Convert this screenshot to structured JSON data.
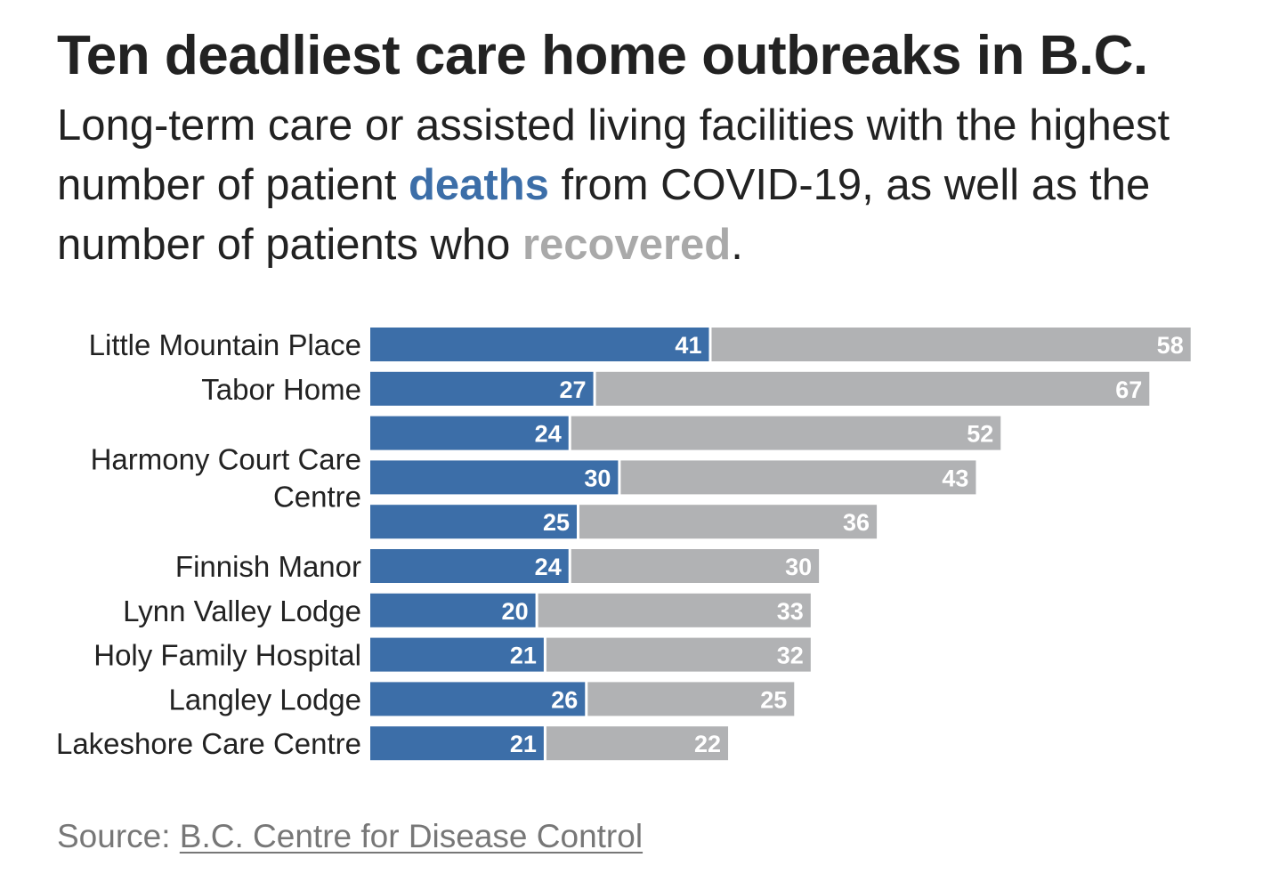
{
  "title": "Ten deadliest care home outbreaks in B.C.",
  "subtitle": {
    "part1": "Long-term care or assisted living facilities with the highest number of patient ",
    "deaths_word": "deaths",
    "part2": " from COVID-19, as well as the number of patients who ",
    "recovered_word": "recovered",
    "part3": "."
  },
  "source": {
    "prefix": "Source: ",
    "link_text": "B.C. Centre for Disease Control"
  },
  "colors": {
    "deaths": "#3c6ea8",
    "recovered": "#b1b2b4",
    "label_text": "#222222",
    "value_text": "#ffffff"
  },
  "chart_data": {
    "type": "bar",
    "orientation": "horizontal",
    "stacked": true,
    "categories": [
      "Little Mountain Place",
      "Tabor Home",
      "",
      "",
      "",
      "Finnish Manor",
      "Lynn Valley Lodge",
      "Holy Family Hospital",
      "Langley Lodge",
      "Lakeshore Care Centre"
    ],
    "group_labels": [
      {
        "label": "Harmony Court Care Centre",
        "rows": [
          2,
          3,
          4
        ]
      }
    ],
    "series": [
      {
        "name": "deaths",
        "values": [
          41,
          27,
          24,
          30,
          25,
          24,
          20,
          21,
          26,
          21
        ]
      },
      {
        "name": "recovered",
        "values": [
          58,
          67,
          52,
          43,
          36,
          30,
          33,
          32,
          25,
          22
        ]
      }
    ],
    "data_labels": true,
    "xlim": [
      0,
      100
    ],
    "grid": false,
    "axes_visible": false
  }
}
